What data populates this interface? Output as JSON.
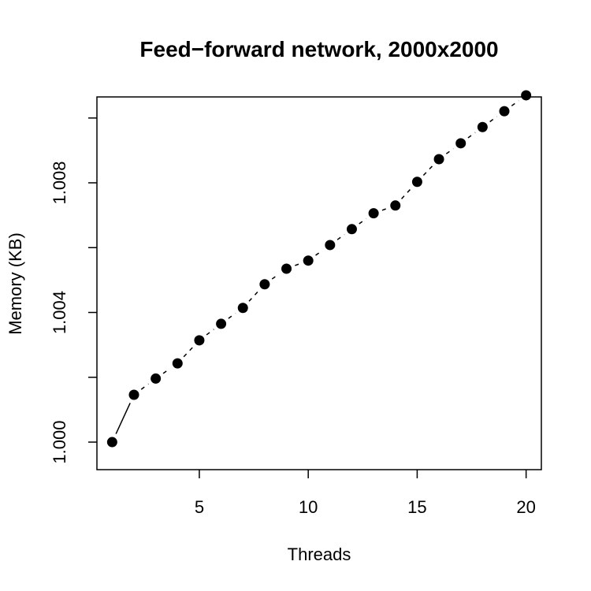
{
  "chart_data": {
    "type": "line",
    "title": "Feed−forward network, 2000x2000",
    "xlabel": "Threads",
    "ylabel": "Memory (KB)",
    "xlim": [
      0.3,
      20.7
    ],
    "ylim": [
      0.99915,
      1.01065
    ],
    "x_ticks": [
      5,
      10,
      15,
      20
    ],
    "x_tick_labels": [
      "5",
      "10",
      "15",
      "20"
    ],
    "y_ticks": [
      1.0,
      1.002,
      1.004,
      1.006,
      1.008,
      1.01
    ],
    "y_tick_labels": [
      "1.000",
      "",
      "1.004",
      "",
      "1.008",
      ""
    ],
    "grid": false,
    "series": [
      {
        "x": [
          1,
          2,
          3,
          4,
          5,
          6,
          7,
          8,
          9,
          10,
          11,
          12,
          13,
          14,
          15,
          16,
          17,
          18,
          19,
          20
        ],
        "y": [
          1.0,
          1.00146,
          1.00196,
          1.00243,
          1.00314,
          1.00365,
          1.00414,
          1.00487,
          1.00535,
          1.0056,
          1.00608,
          1.00657,
          1.00706,
          1.0073,
          1.00803,
          1.00873,
          1.00922,
          1.00972,
          1.01021,
          1.0107
        ]
      }
    ]
  }
}
